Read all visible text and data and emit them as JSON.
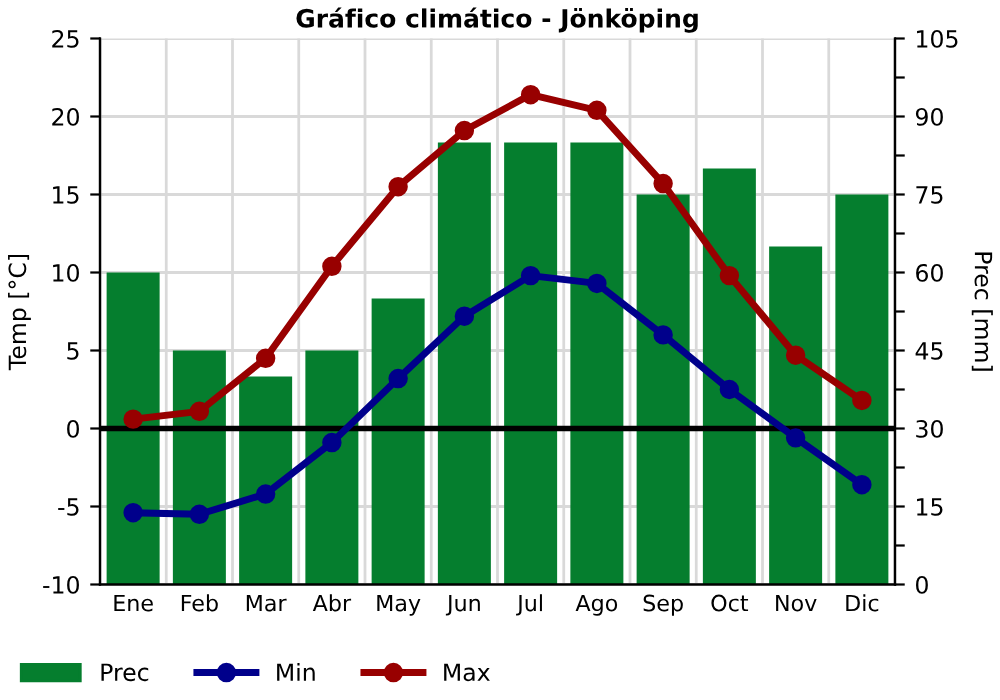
{
  "chart_data": {
    "type": "bar",
    "title": "Gráfico climático - Jönköping",
    "ylabel": "Temp [°C]",
    "y2label": "Prec [mm]",
    "categories": [
      "Ene",
      "Feb",
      "Mar",
      "Abr",
      "May",
      "Jun",
      "Jul",
      "Ago",
      "Sep",
      "Oct",
      "Nov",
      "Dic"
    ],
    "series": [
      {
        "name": "Prec",
        "axis": "y2",
        "color": "#057e2e",
        "values": [
          60,
          45,
          40,
          45,
          55,
          85,
          85,
          85,
          75,
          80,
          65,
          75
        ]
      },
      {
        "name": "Min",
        "type": "line",
        "color": "#00008b",
        "marker": "circle",
        "values": [
          -5.4,
          -5.5,
          -4.2,
          -0.9,
          3.2,
          7.2,
          9.8,
          9.3,
          6.0,
          2.5,
          -0.6,
          -3.6
        ]
      },
      {
        "name": "Max",
        "type": "line",
        "color": "#980000",
        "marker": "circle",
        "values": [
          0.6,
          1.1,
          4.5,
          10.4,
          15.5,
          19.1,
          21.4,
          20.4,
          15.7,
          9.8,
          4.7,
          1.8
        ]
      }
    ],
    "ylim": [
      -10,
      25
    ],
    "yticks": [
      -10,
      -5,
      0,
      5,
      10,
      15,
      20,
      25
    ],
    "y2lim": [
      0,
      105
    ],
    "y2ticks": [
      0,
      {
        "value": 7.5,
        "label": null
      },
      15,
      {
        "value": 22.5,
        "label": null
      },
      30,
      {
        "value": 37.5,
        "label": null
      },
      45,
      {
        "value": 52.5,
        "label": null
      },
      60,
      {
        "value": 67.5,
        "label": null
      },
      75,
      {
        "value": 82.5,
        "label": null
      },
      90,
      {
        "value": 97.5,
        "label": null
      },
      105
    ],
    "ref_lines": [
      {
        "axis": "y",
        "value": 0,
        "color": "#000000"
      }
    ],
    "grid": true,
    "legend": "bottom"
  }
}
